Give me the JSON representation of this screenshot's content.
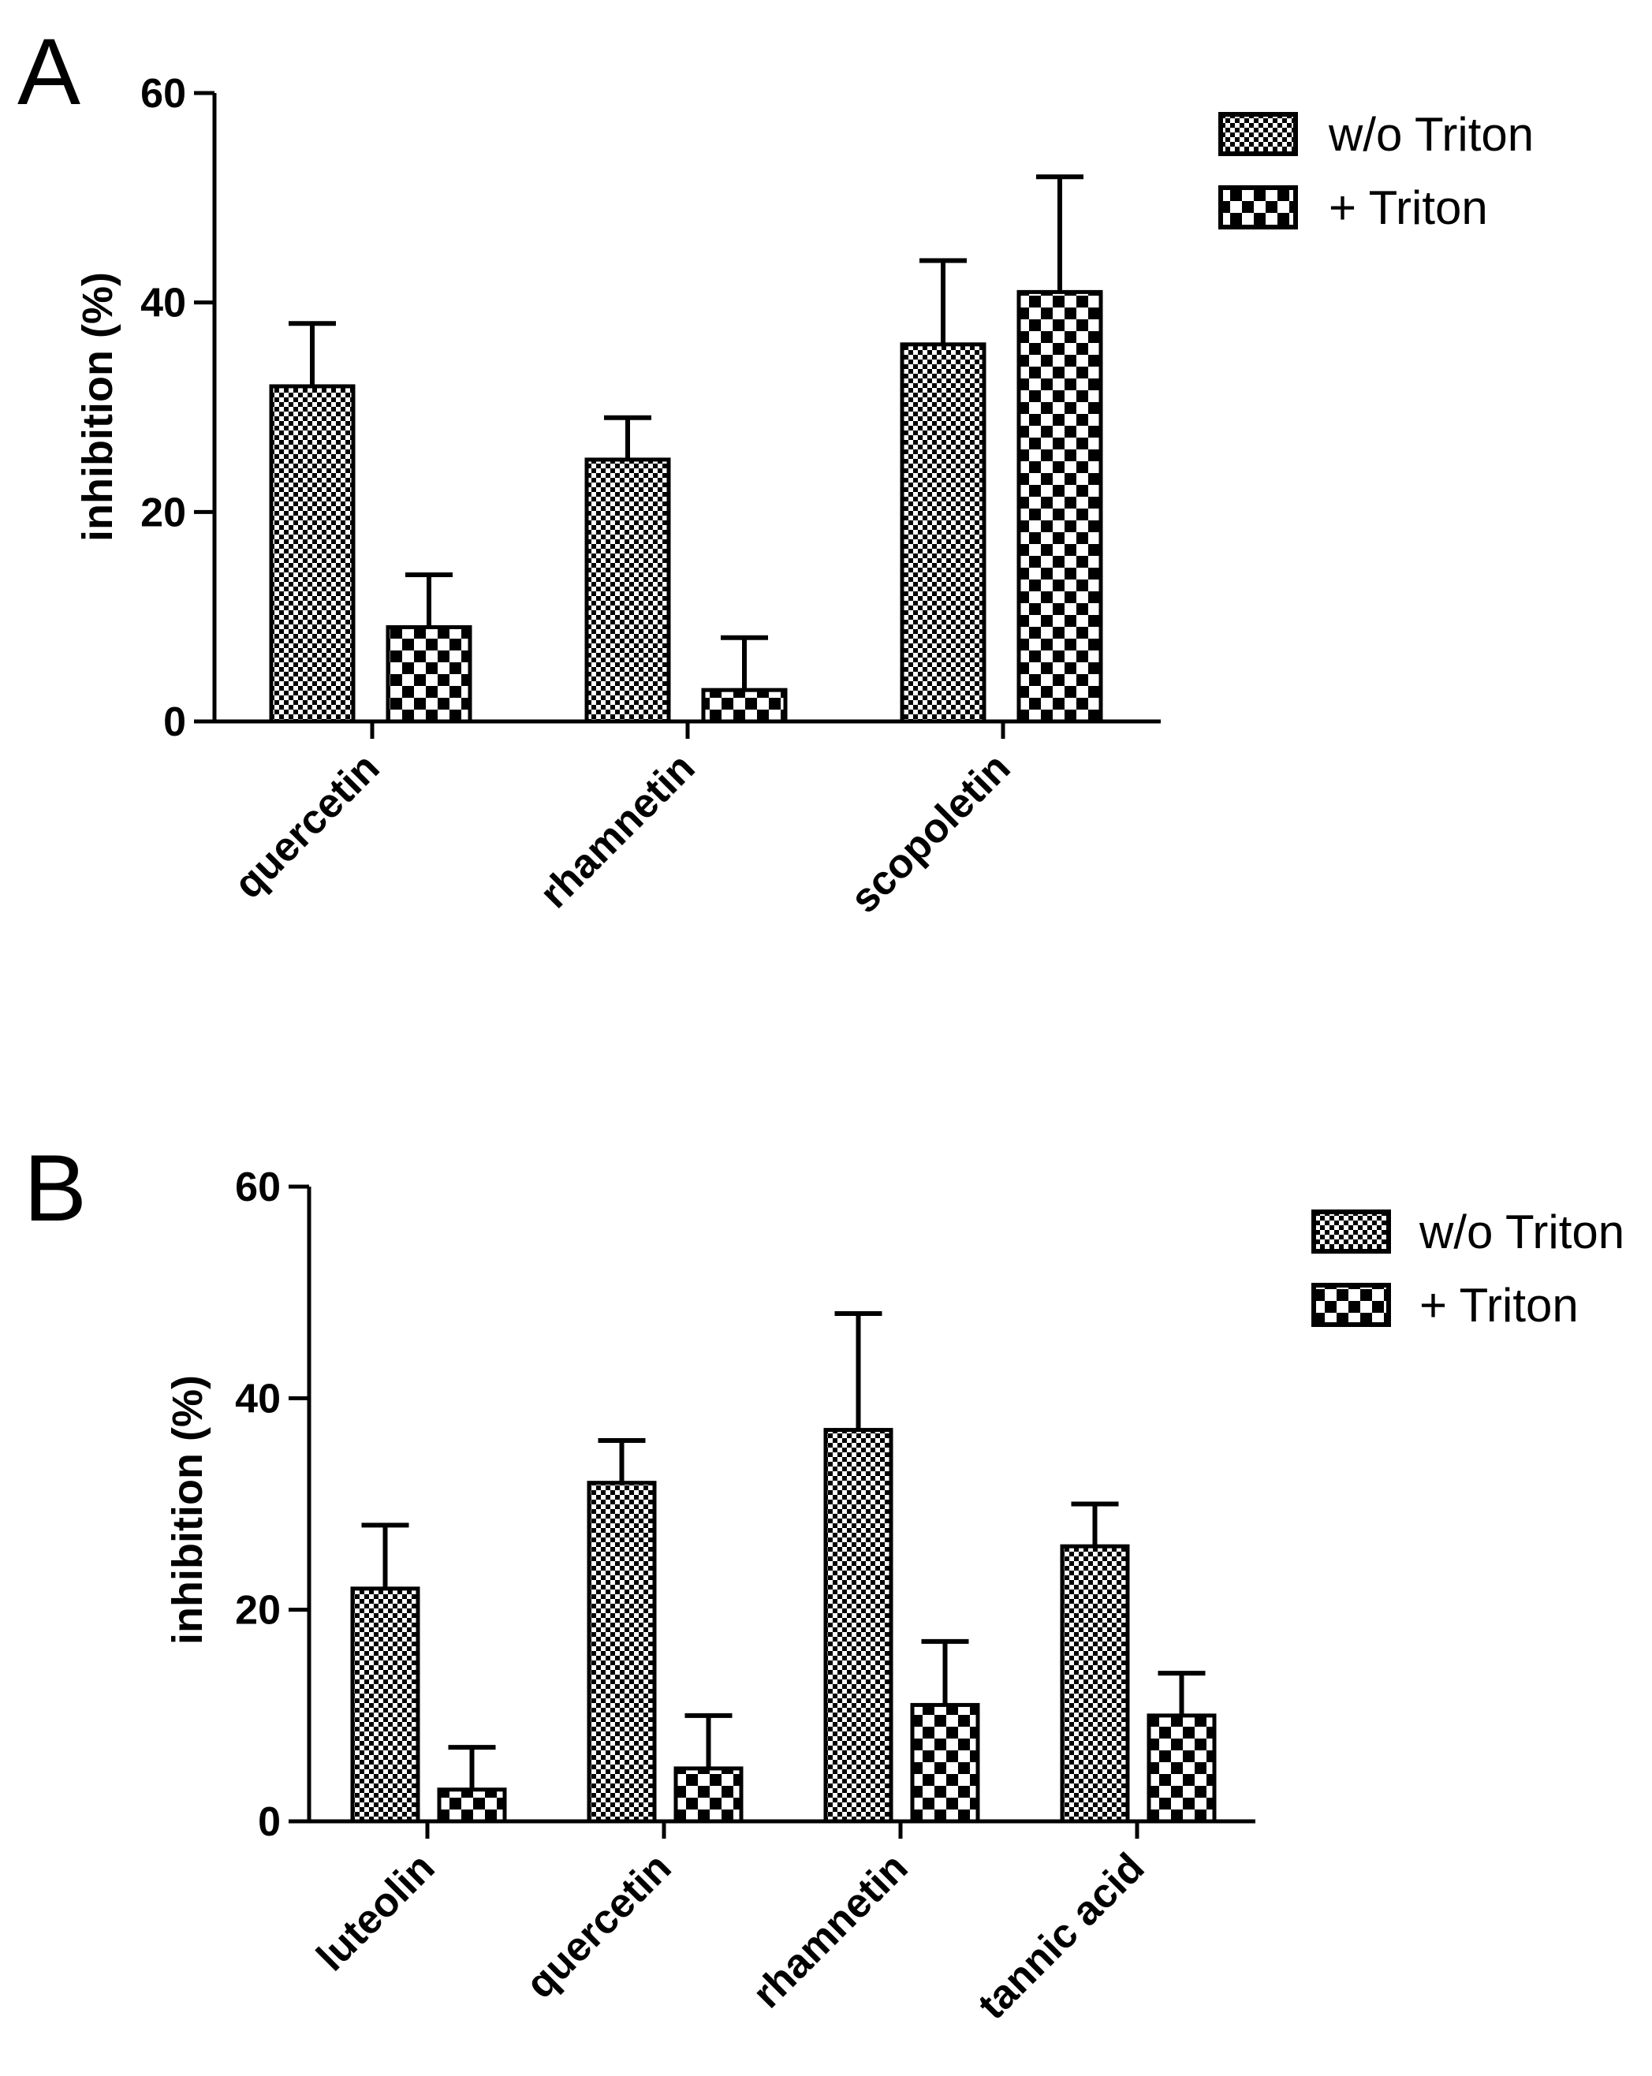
{
  "chart_data": [
    {
      "type": "bar",
      "panel": "A",
      "title": "",
      "xlabel": "",
      "ylabel": "inhibition (%)",
      "ylim": [
        0,
        60
      ],
      "yticks": [
        0,
        20,
        40,
        60
      ],
      "categories": [
        "quercetin",
        "rhamnetin",
        "scopoletin"
      ],
      "series": [
        {
          "name": "w/o Triton",
          "values": [
            32,
            25,
            36
          ],
          "errors": [
            6,
            4,
            8
          ]
        },
        {
          "name": "+ Triton",
          "values": [
            9,
            3,
            41
          ],
          "errors": [
            5,
            5,
            11
          ]
        }
      ],
      "legend": "top-right"
    },
    {
      "type": "bar",
      "panel": "B",
      "title": "",
      "xlabel": "",
      "ylabel": "inhibition (%)",
      "ylim": [
        0,
        60
      ],
      "yticks": [
        0,
        20,
        40,
        60
      ],
      "categories": [
        "luteolin",
        "quercetin",
        "rhamnetin",
        "tannic acid"
      ],
      "series": [
        {
          "name": "w/o Triton",
          "values": [
            22,
            32,
            37,
            26
          ],
          "errors": [
            6,
            4,
            11,
            4
          ]
        },
        {
          "name": "+ Triton",
          "values": [
            3,
            5,
            11,
            10
          ],
          "errors": [
            4,
            5,
            6,
            4
          ]
        }
      ],
      "legend": "top-right"
    }
  ]
}
